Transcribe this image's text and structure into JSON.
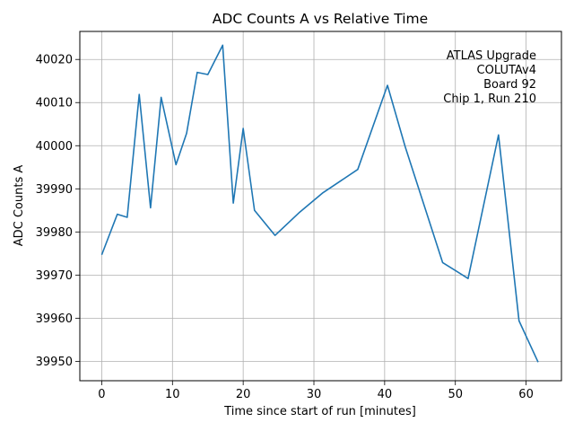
{
  "chart_data": {
    "type": "line",
    "title": "ADC Counts A vs Relative Time",
    "xlabel": "Time since start of run [minutes]",
    "ylabel": "ADC Counts A",
    "xlim": [
      -3.1,
      65.0
    ],
    "ylim": [
      39945.5,
      40026.5
    ],
    "xticks": [
      0,
      10,
      20,
      30,
      40,
      50,
      60
    ],
    "yticks": [
      39950,
      39960,
      39970,
      39980,
      39990,
      40000,
      40010,
      40020
    ],
    "grid": true,
    "annotation_lines": [
      "ATLAS Upgrade",
      "COLUTAv4",
      "Board 92",
      "Chip 1, Run 210"
    ],
    "annotation_placement": "top-right",
    "series_color": "#1f77b4",
    "series": [
      {
        "x": [
          0.0,
          2.2,
          3.6,
          5.3,
          6.9,
          8.4,
          10.5,
          12.0,
          13.5,
          15.0,
          17.1,
          18.6,
          20.0,
          21.6,
          24.5,
          28.0,
          31.2,
          36.2,
          40.4,
          42.9,
          48.2,
          51.8,
          56.1,
          59.0,
          61.7
        ],
        "y": [
          39974.7,
          39984.1,
          39983.4,
          40011.9,
          39985.6,
          40011.2,
          39995.6,
          40002.9,
          40017.0,
          40016.5,
          40023.3,
          39986.7,
          40004.0,
          39985.0,
          39979.2,
          39984.6,
          39989.0,
          39994.5,
          40014.0,
          39999.8,
          39972.9,
          39969.2,
          40002.5,
          39959.4,
          39949.8
        ]
      }
    ]
  }
}
